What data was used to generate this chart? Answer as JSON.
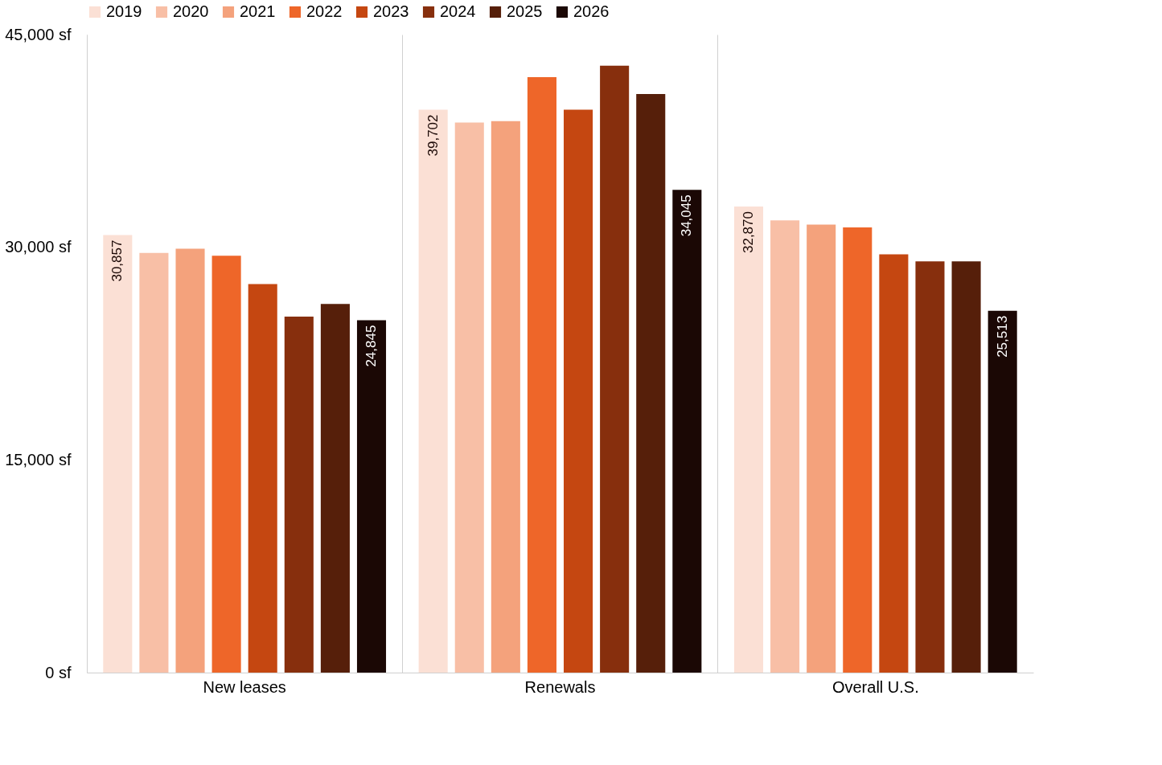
{
  "chart_data": {
    "type": "bar",
    "categories": [
      "New leases",
      "Renewals",
      "Overall U.S."
    ],
    "series": [
      {
        "name": "2019",
        "color": "#fbe0d5",
        "values": [
          30857,
          39702,
          32870
        ],
        "value_labels": [
          "30,857",
          "39,702",
          "32,870"
        ]
      },
      {
        "name": "2020",
        "color": "#f8bfa6",
        "values": [
          29600,
          38800,
          31900
        ]
      },
      {
        "name": "2021",
        "color": "#f4a27c",
        "values": [
          29900,
          38900,
          31600
        ]
      },
      {
        "name": "2022",
        "color": "#ee6629",
        "values": [
          29400,
          42000,
          31400
        ]
      },
      {
        "name": "2023",
        "color": "#c54711",
        "values": [
          27400,
          39700,
          29500
        ]
      },
      {
        "name": "2024",
        "color": "#872f0d",
        "values": [
          25100,
          42800,
          29000
        ]
      },
      {
        "name": "2025",
        "color": "#561f0a",
        "values": [
          26000,
          40800,
          29000
        ]
      },
      {
        "name": "2026",
        "color": "#1b0805",
        "values": [
          24845,
          34045,
          25513
        ],
        "value_labels": [
          "24,845",
          "34,045",
          "25,513"
        ]
      }
    ],
    "ylim": [
      0,
      45000
    ],
    "yticks": [
      {
        "value": 0,
        "label": "0 sf"
      },
      {
        "value": 15000,
        "label": "15,000 sf"
      },
      {
        "value": 30000,
        "label": "30,000 sf"
      },
      {
        "value": 45000,
        "label": "45,000 sf"
      }
    ],
    "grid": "x",
    "legend": "top"
  }
}
